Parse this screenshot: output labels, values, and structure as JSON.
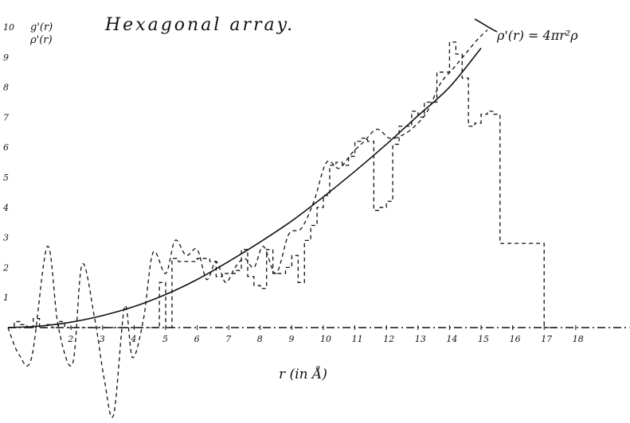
{
  "chart_data": {
    "type": "line",
    "title": "Hexagonal array.",
    "ylabel_lines": [
      "g'(r)",
      "ρ'(r)"
    ],
    "xlabel": "r (in Å)",
    "annotation": "ρ'(r) = 4πr²ρ",
    "xlim": [
      0,
      19
    ],
    "ylim": [
      -3,
      10
    ],
    "x_ticks": [
      "2",
      "3",
      "4",
      "5",
      "6",
      "7",
      "8",
      "9",
      "10",
      "11",
      "12",
      "13",
      "14",
      "15",
      "16",
      "17",
      "18"
    ],
    "x_tick_values": [
      2,
      3,
      4,
      5,
      6,
      7,
      8,
      9,
      10,
      11,
      12,
      13,
      14,
      15,
      16,
      17,
      18
    ],
    "y_ticks": [
      "1",
      "2",
      "3",
      "4",
      "5",
      "6",
      "7",
      "8",
      "9",
      "10"
    ],
    "y_tick_values": [
      1,
      2,
      3,
      4,
      5,
      6,
      7,
      8,
      9,
      10
    ],
    "series": [
      {
        "style": "solid",
        "x": [
          0,
          1,
          2,
          3,
          4,
          5,
          6,
          7,
          8,
          9,
          10,
          11,
          12,
          13,
          14,
          15
        ],
        "y": [
          0,
          0.05,
          0.18,
          0.4,
          0.7,
          1.1,
          1.6,
          2.2,
          2.85,
          3.55,
          4.35,
          5.2,
          6.1,
          7.05,
          8.0,
          9.3
        ]
      },
      {
        "style": "dashed-oscillating",
        "x": [
          0,
          0.35,
          0.75,
          1.25,
          1.6,
          2.05,
          2.35,
          2.75,
          3.05,
          3.35,
          3.7,
          3.95,
          4.3,
          4.6,
          5.0,
          5.3,
          5.65,
          6.0,
          6.3,
          6.6,
          6.9,
          7.2,
          7.5,
          7.8,
          8.1,
          8.5,
          8.9,
          9.3,
          9.7,
          10.1,
          10.5,
          10.9,
          11.3,
          11.7,
          12.1,
          12.5,
          12.9,
          13.3,
          13.7,
          14.1,
          14.5,
          14.9,
          15.2
        ],
        "y": [
          0.0,
          -0.9,
          -1.0,
          2.7,
          0.0,
          -1.2,
          2.1,
          0.3,
          -1.7,
          -2.9,
          0.7,
          -1.0,
          0.3,
          2.5,
          1.8,
          2.9,
          2.4,
          2.6,
          1.6,
          2.2,
          1.5,
          2.0,
          2.3,
          2.0,
          2.7,
          1.8,
          3.1,
          3.3,
          4.2,
          5.5,
          5.3,
          5.8,
          6.2,
          6.6,
          6.3,
          6.4,
          6.7,
          7.2,
          8.1,
          8.6,
          9.1,
          9.6,
          9.9
        ]
      },
      {
        "style": "dashed-step",
        "x": [
          0,
          0.2,
          0.4,
          0.6,
          0.8,
          1.0,
          1.2,
          1.4,
          1.6,
          1.8,
          2.0,
          2.2,
          2.4,
          2.6,
          2.8,
          3.0,
          3.2,
          3.4,
          3.6,
          3.8,
          4.0,
          4.2,
          4.4,
          4.6,
          4.8,
          5.0,
          5.2,
          5.4,
          5.6,
          5.8,
          6.0,
          6.2,
          6.4,
          6.6,
          6.8,
          7.0,
          7.2,
          7.4,
          7.6,
          7.8,
          8.0,
          8.2,
          8.4,
          8.6,
          8.8,
          9.0,
          9.2,
          9.4,
          9.6,
          9.8,
          10.0,
          10.2,
          10.4,
          10.6,
          10.8,
          11.0,
          11.2,
          11.4,
          11.6,
          11.8,
          12.0,
          12.2,
          12.4,
          12.6,
          12.8,
          13.0,
          13.2,
          13.4,
          13.6,
          13.8,
          14.0,
          14.2,
          14.4,
          14.6,
          14.8,
          15.0,
          15.2,
          15.4,
          15.6,
          15.8,
          16.0,
          16.2,
          16.4,
          16.6,
          16.8,
          17.0,
          17.2,
          17.4
        ],
        "y": [
          0.0,
          0.2,
          0.1,
          0.0,
          0.3,
          0.0,
          0.1,
          0.0,
          0.2,
          0.0,
          0.0,
          0.0,
          0.0,
          0.0,
          0.0,
          0.0,
          0.0,
          0.0,
          0.0,
          0.0,
          0.0,
          0.0,
          0.0,
          0.0,
          1.5,
          0.0,
          2.3,
          2.2,
          2.2,
          2.2,
          2.3,
          2.3,
          2.2,
          1.7,
          1.8,
          1.8,
          1.9,
          2.6,
          1.7,
          1.4,
          1.3,
          2.6,
          1.8,
          1.8,
          2.0,
          2.4,
          1.5,
          2.9,
          3.4,
          4.0,
          4.4,
          5.4,
          5.5,
          5.4,
          5.7,
          6.2,
          6.3,
          6.2,
          3.9,
          4.0,
          4.2,
          6.1,
          6.7,
          6.7,
          7.2,
          7.0,
          7.5,
          7.5,
          8.5,
          8.5,
          9.5,
          9.1,
          8.3,
          6.7,
          6.8,
          7.1,
          7.2,
          7.1,
          2.8,
          2.8,
          2.8,
          2.8,
          2.8,
          2.8,
          2.8,
          0.0,
          0.0,
          0.0
        ]
      }
    ]
  }
}
